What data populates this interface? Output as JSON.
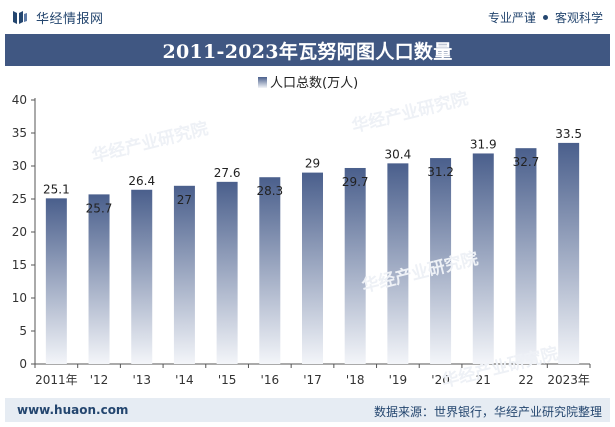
{
  "header": {
    "brand_name": "华经情报网",
    "tags": [
      "专业严谨",
      "客观科学"
    ]
  },
  "title": "2011-2023年瓦努阿图人口数量",
  "footer": {
    "url": "www.huaon.com",
    "source": "数据来源：世界银行，华经产业研究院整理"
  },
  "watermark": {
    "text": "华经产业研究院",
    "url": "www.huaon.com"
  },
  "colors": {
    "brand": "#24466f",
    "title_bar": "#405782",
    "bar_top": "#4a5f8c",
    "bar_bottom": "#f3f5f9",
    "footer_bg": "#e6ecf3"
  },
  "chart_data": {
    "type": "bar",
    "title": "2011-2023年瓦努阿图人口数量",
    "legend": "人口总数(万人)",
    "legend_position": "top",
    "xlabel": "",
    "ylabel": "",
    "categories": [
      "2011年",
      "'12",
      "'13",
      "'14",
      "'15",
      "'16",
      "'17",
      "'18",
      "'19",
      "'20",
      "21",
      "22",
      "2023年"
    ],
    "series": [
      {
        "name": "人口总数(万人)",
        "values": [
          25.1,
          25.7,
          26.4,
          27,
          27.6,
          28.3,
          29,
          29.7,
          30.4,
          31.2,
          31.9,
          32.7,
          33.5
        ],
        "labels": [
          "25.1",
          "25.7",
          "26.4",
          "27",
          "27.6",
          "28.3",
          "29",
          "29.7",
          "30.4",
          "31.2",
          "31.9",
          "32.7",
          "33.5"
        ]
      }
    ],
    "label_inside": [
      false,
      true,
      false,
      true,
      false,
      true,
      false,
      true,
      false,
      true,
      false,
      true,
      false
    ],
    "ylim": [
      0,
      40
    ],
    "yticks": [
      0,
      5,
      10,
      15,
      20,
      25,
      30,
      35,
      40
    ],
    "grid": false
  }
}
